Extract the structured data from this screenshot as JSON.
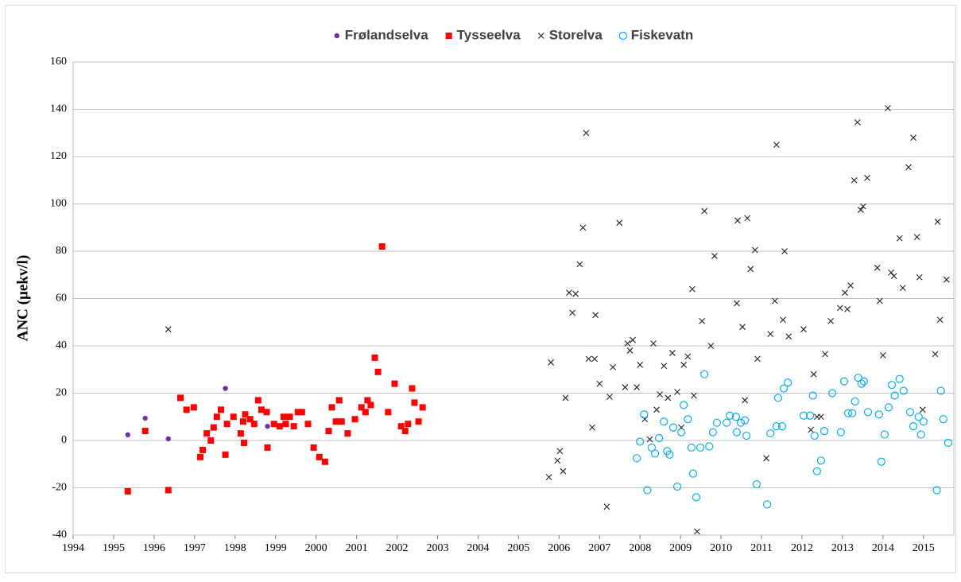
{
  "chart_data": {
    "type": "scatter",
    "y_label": "ANC (µekv/l)",
    "xlim": [
      1994,
      2015.75
    ],
    "ylim": [
      -40,
      160
    ],
    "xticks": [
      1994,
      1995,
      1996,
      1997,
      1998,
      1999,
      2000,
      2001,
      2002,
      2003,
      2004,
      2005,
      2006,
      2007,
      2008,
      2009,
      2010,
      2011,
      2012,
      2013,
      2014,
      2015
    ],
    "yticks": [
      -40,
      -20,
      0,
      20,
      40,
      60,
      80,
      100,
      120,
      140,
      160
    ],
    "grid": true,
    "legend": "top",
    "series": [
      {
        "name": "Frølandselva",
        "color": "#7030a0",
        "marker": "dot",
        "x": [
          1995.35,
          1995.78,
          1996.35,
          1997.76,
          1998.8
        ],
        "values": [
          2.4,
          9.4,
          0.7,
          22,
          6
        ]
      },
      {
        "name": "Tysseelva",
        "color": "#ff0000",
        "marker": "square",
        "x": [
          1995.35,
          1995.78,
          1996.35,
          1996.65,
          1996.8,
          1996.98,
          1997.14,
          1997.2,
          1997.3,
          1997.4,
          1997.47,
          1997.55,
          1997.65,
          1997.76,
          1997.8,
          1997.96,
          1998.14,
          1998.2,
          1998.22,
          1998.25,
          1998.37,
          1998.47,
          1998.57,
          1998.65,
          1998.78,
          1998.8,
          1998.96,
          1999.1,
          1999.2,
          1999.25,
          1999.35,
          1999.45,
          1999.55,
          1999.65,
          1999.8,
          1999.94,
          2000.08,
          2000.22,
          2000.31,
          2000.39,
          2000.49,
          2000.57,
          2000.63,
          2000.78,
          2000.96,
          2001.12,
          2001.22,
          2001.27,
          2001.35,
          2001.45,
          2001.53,
          2001.63,
          2001.78,
          2001.94,
          2002.1,
          2002.2,
          2002.27,
          2002.37,
          2002.43,
          2002.53,
          2002.63
        ],
        "values": [
          -21.5,
          4,
          -21,
          18,
          13,
          14,
          -7,
          -4,
          3,
          0,
          5.5,
          10,
          13,
          -6,
          7,
          10,
          3,
          8,
          -1,
          11,
          9,
          7,
          17,
          13,
          12,
          -3,
          7,
          6,
          10,
          7,
          10,
          6,
          12,
          12,
          7,
          -3,
          -7,
          -9,
          4,
          14,
          8,
          17,
          8,
          3,
          9,
          14,
          12,
          17,
          15,
          35,
          29,
          82,
          12,
          24,
          6,
          4,
          7,
          22,
          16,
          8,
          14
        ]
      },
      {
        "name": "Storelva",
        "color": "#222222",
        "marker": "cross",
        "x": [
          1996.35,
          2005.75,
          2005.8,
          2005.96,
          2006.02,
          2006.1,
          2006.16,
          2006.25,
          2006.33,
          2006.41,
          2006.51,
          2006.59,
          2006.67,
          2006.73,
          2006.82,
          2006.88,
          2006.9,
          2007.0,
          2007.18,
          2007.25,
          2007.33,
          2007.49,
          2007.63,
          2007.69,
          2007.75,
          2007.82,
          2007.92,
          2008.0,
          2008.12,
          2008.24,
          2008.33,
          2008.41,
          2008.49,
          2008.59,
          2008.69,
          2008.8,
          2008.92,
          2009.02,
          2009.08,
          2009.18,
          2009.29,
          2009.33,
          2009.41,
          2009.53,
          2009.59,
          2009.75,
          2009.84,
          2010.39,
          2010.41,
          2010.53,
          2010.59,
          2010.65,
          2010.73,
          2010.84,
          2010.9,
          2011.12,
          2011.22,
          2011.33,
          2011.37,
          2011.53,
          2011.57,
          2011.67,
          2012.04,
          2012.22,
          2012.29,
          2012.37,
          2012.47,
          2012.57,
          2012.71,
          2012.94,
          2013.06,
          2013.12,
          2013.2,
          2013.29,
          2013.37,
          2013.45,
          2013.51,
          2013.61,
          2013.86,
          2013.92,
          2014.0,
          2014.12,
          2014.2,
          2014.27,
          2014.41,
          2014.49,
          2014.63,
          2014.75,
          2014.84,
          2014.9,
          2014.98,
          2015.29,
          2015.35,
          2015.41,
          2015.57
        ],
        "values": [
          47,
          -15.5,
          33,
          -8.5,
          -4.5,
          -13,
          18,
          62.5,
          54,
          62,
          74.5,
          90,
          130,
          34.5,
          5.5,
          34.5,
          53,
          24,
          -28,
          18.5,
          31,
          92,
          22.5,
          41,
          38,
          42.5,
          22.5,
          32,
          9,
          0.5,
          41,
          13,
          19.5,
          31.5,
          18,
          37,
          20.5,
          5.5,
          32,
          35.5,
          64,
          19,
          -38.5,
          50.5,
          97,
          40,
          78,
          58,
          93,
          48,
          17,
          94,
          72.5,
          80.5,
          34.5,
          -7.5,
          45,
          59,
          125,
          51,
          80,
          44,
          47,
          4.5,
          28,
          10,
          10,
          36.5,
          50.5,
          56,
          62.5,
          55.5,
          65.5,
          110,
          134.5,
          97.5,
          99,
          111,
          73,
          59,
          36,
          140.5,
          71,
          69.5,
          85.5,
          64.5,
          115.5,
          128,
          86,
          69,
          13,
          36.5,
          92.5,
          51,
          68
        ]
      },
      {
        "name": "Fiskevatn",
        "color": "#00b0f0",
        "marker": "ring",
        "x": [
          2007.92,
          2008.0,
          2008.1,
          2008.18,
          2008.29,
          2008.37,
          2008.47,
          2008.59,
          2008.67,
          2008.73,
          2008.82,
          2008.92,
          2009.02,
          2009.08,
          2009.18,
          2009.27,
          2009.31,
          2009.39,
          2009.49,
          2009.59,
          2009.71,
          2009.8,
          2009.9,
          2010.14,
          2010.22,
          2010.37,
          2010.39,
          2010.49,
          2010.59,
          2010.63,
          2010.88,
          2011.14,
          2011.22,
          2011.37,
          2011.41,
          2011.51,
          2011.55,
          2011.65,
          2012.04,
          2012.2,
          2012.27,
          2012.31,
          2012.37,
          2012.47,
          2012.55,
          2012.75,
          2012.96,
          2013.04,
          2013.14,
          2013.24,
          2013.31,
          2013.39,
          2013.47,
          2013.53,
          2013.63,
          2013.9,
          2013.96,
          2014.04,
          2014.14,
          2014.22,
          2014.29,
          2014.41,
          2014.51,
          2014.67,
          2014.75,
          2014.88,
          2014.94,
          2015.0,
          2015.33,
          2015.43,
          2015.49,
          2015.61
        ],
        "values": [
          -7.5,
          -0.5,
          11,
          -21,
          -3,
          -5.5,
          1,
          8,
          -4.5,
          -6,
          5.5,
          -19.5,
          3.5,
          15,
          9,
          -3,
          -14,
          -24,
          -3,
          28,
          -2.5,
          3.5,
          7.5,
          7.5,
          10.5,
          10,
          3.5,
          7.5,
          8.5,
          2,
          -18.5,
          -27,
          3,
          6,
          18,
          6,
          22,
          24.5,
          10.5,
          10.5,
          19,
          2,
          -13,
          -8.5,
          4,
          20,
          3.5,
          25,
          11.5,
          11.5,
          16.5,
          26.5,
          24,
          25,
          12,
          11,
          -9,
          2.5,
          14,
          23.5,
          19,
          26,
          21,
          12,
          6,
          10,
          2.5,
          8,
          -21,
          21,
          9,
          -1
        ]
      }
    ]
  }
}
